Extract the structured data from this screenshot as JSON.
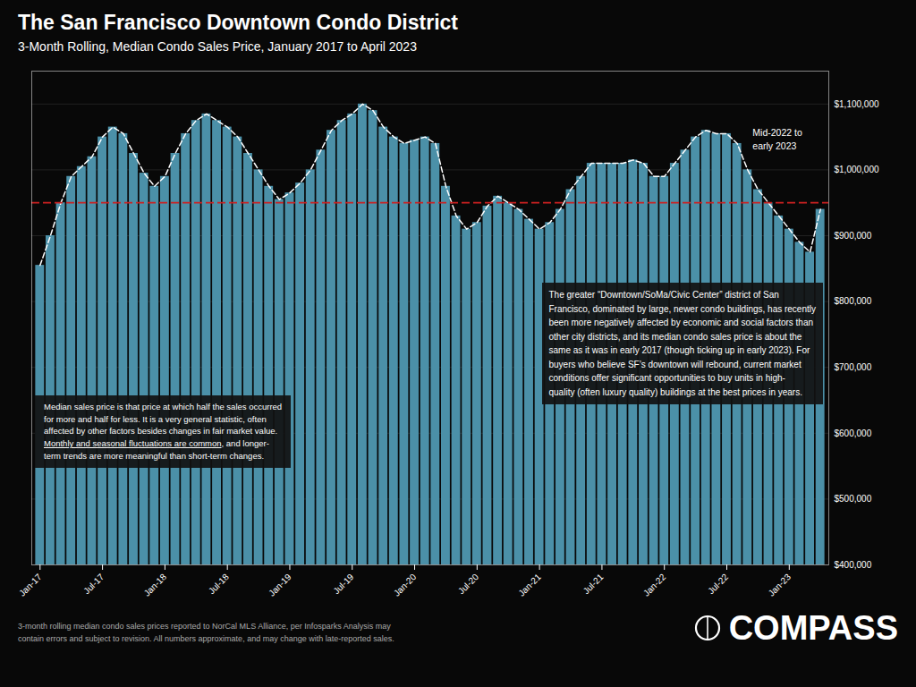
{
  "chart_data": {
    "type": "bar",
    "title": "The San Francisco Downtown Condo District",
    "subtitle": "3-Month Rolling, Median Condo Sales Price, January 2017 to April 2023",
    "categories": [
      "Jan-17",
      null,
      null,
      null,
      null,
      null,
      "Jul-17",
      null,
      null,
      null,
      null,
      null,
      "Jan-18",
      null,
      null,
      null,
      null,
      null,
      "Jul-18",
      null,
      null,
      null,
      null,
      null,
      "Jan-19",
      null,
      null,
      null,
      null,
      null,
      "Jul-19",
      null,
      null,
      null,
      null,
      null,
      "Jan-20",
      null,
      null,
      null,
      null,
      null,
      "Jul-20",
      null,
      null,
      null,
      null,
      null,
      "Jan-21",
      null,
      null,
      null,
      null,
      null,
      "Jul-21",
      null,
      null,
      null,
      null,
      null,
      "Jan-22",
      null,
      null,
      null,
      null,
      null,
      "Jul-22",
      null,
      null,
      null,
      null,
      null,
      "Jan-23",
      null,
      null,
      null
    ],
    "series": [
      {
        "type": "bar",
        "color": "#4b90a8",
        "values": [
          855000,
          900000,
          950000,
          990000,
          1005000,
          1020000,
          1050000,
          1065000,
          1055000,
          1025000,
          995000,
          975000,
          990000,
          1025000,
          1055000,
          1075000,
          1085000,
          1075000,
          1065000,
          1050000,
          1025000,
          1000000,
          975000,
          955000,
          965000,
          980000,
          1000000,
          1030000,
          1060000,
          1075000,
          1085000,
          1100000,
          1090000,
          1065000,
          1050000,
          1040000,
          1045000,
          1050000,
          1040000,
          975000,
          930000,
          910000,
          920000,
          945000,
          960000,
          950000,
          940000,
          925000,
          910000,
          920000,
          940000,
          970000,
          990000,
          1010000,
          1010000,
          1010000,
          1010000,
          1015000,
          1010000,
          990000,
          990000,
          1010000,
          1030000,
          1050000,
          1060000,
          1055000,
          1055000,
          1040000,
          1000000,
          970000,
          950000,
          930000,
          910000,
          890000,
          875000,
          940000
        ]
      },
      {
        "type": "line",
        "color": "#ffffff",
        "line_style": "dashed",
        "values": [
          855000,
          900000,
          950000,
          990000,
          1005000,
          1020000,
          1050000,
          1065000,
          1055000,
          1025000,
          995000,
          975000,
          990000,
          1025000,
          1055000,
          1075000,
          1085000,
          1075000,
          1065000,
          1050000,
          1025000,
          1000000,
          975000,
          955000,
          965000,
          980000,
          1000000,
          1030000,
          1060000,
          1075000,
          1085000,
          1100000,
          1090000,
          1065000,
          1050000,
          1040000,
          1045000,
          1050000,
          1040000,
          975000,
          930000,
          910000,
          920000,
          945000,
          960000,
          950000,
          940000,
          925000,
          910000,
          920000,
          940000,
          970000,
          990000,
          1010000,
          1010000,
          1010000,
          1010000,
          1015000,
          1010000,
          990000,
          990000,
          1010000,
          1030000,
          1050000,
          1060000,
          1055000,
          1055000,
          1040000,
          1000000,
          970000,
          950000,
          930000,
          910000,
          890000,
          875000,
          940000
        ]
      }
    ],
    "reference_lines": [
      {
        "value": 950000,
        "color": "#cc2020",
        "line_style": "dashed"
      }
    ],
    "ylim": [
      400000,
      1150000
    ],
    "yticks": [
      {
        "value": 400000,
        "label": "$400,000"
      },
      {
        "value": 500000,
        "label": "$500,000"
      },
      {
        "value": 600000,
        "label": "$600,000"
      },
      {
        "value": 700000,
        "label": "$700,000"
      },
      {
        "value": 800000,
        "label": "$800,000"
      },
      {
        "value": 900000,
        "label": "$900,000"
      },
      {
        "value": 1000000,
        "label": "$1,000,000"
      },
      {
        "value": 1100000,
        "label": "$1,100,000"
      }
    ],
    "grid": true,
    "annotations": [
      "The greater “Downtown/SoMa/Civic Center” district of San\nFrancisco, dominated by large, newer condo buildings, has recently\nbeen more negatively affected by economic and social factors than\nother city districts, and its median condo sales price is about the\nsame as it was in early 2017 (though ticking up in early 2023). For\nbuyers who believe SF’s downtown will rebound, current market\nconditions offer significant opportunities to buy units in high-\nquality (often luxury quality) buildings at the best prices in years.",
      "Median sales price is that price at which half the sales occurred\nfor more and half for less. It is a very general statistic, often\naffected by other factors besides changes in fair market value.",
      "Monthly and seasonal fluctuations are common",
      ", and longer-",
      "term trends are more meaningful than short-term changes.",
      "Mid-2022 to\nearly 2023"
    ],
    "caption": "3-month rolling median condo sales prices reported to NorCal MLS Alliance, per Infosparks Analysis may\ncontain errors and subject to revision. All numbers approximate, and may change with late-reported sales.",
    "logo": "COMPASS"
  }
}
